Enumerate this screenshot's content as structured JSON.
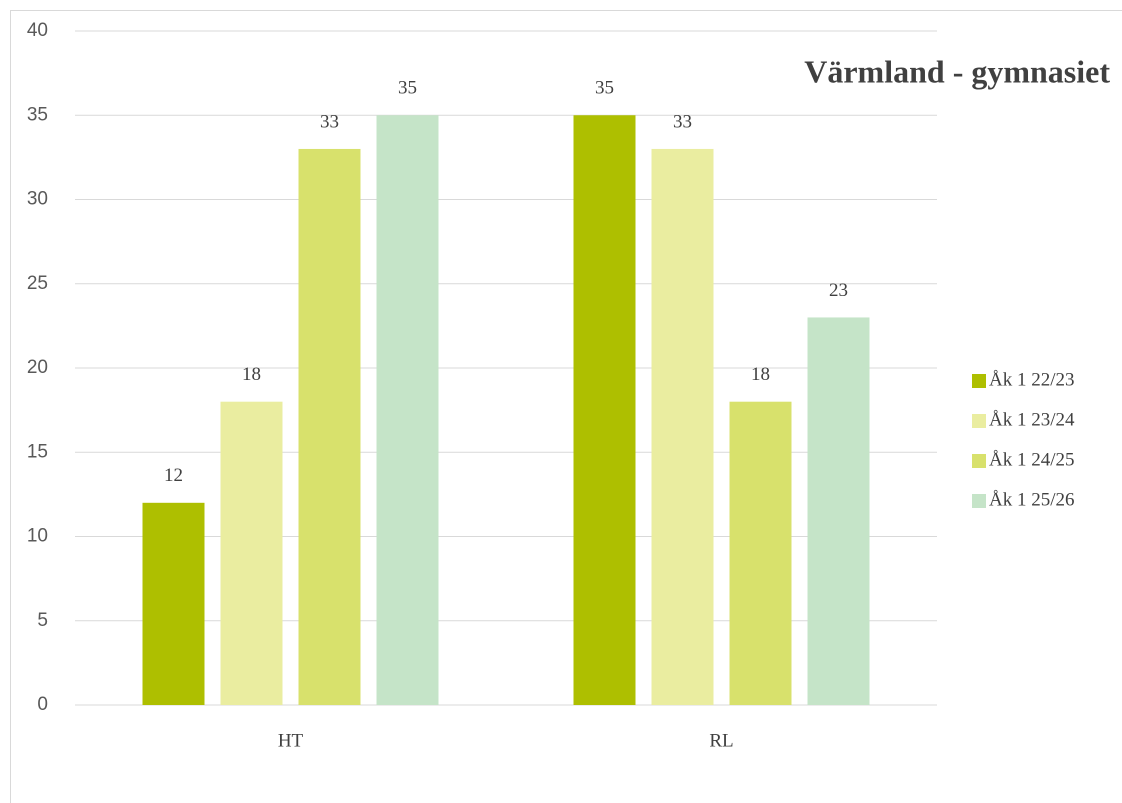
{
  "chart_data": {
    "type": "bar",
    "title": "Värmland - gymnasiet",
    "categories": [
      "HT",
      "RL"
    ],
    "series": [
      {
        "name": "Åk 1 22/23",
        "color": "#aebf00",
        "values": [
          12,
          35
        ]
      },
      {
        "name": "Åk 1 23/24",
        "color": "#eaeda0",
        "values": [
          18,
          33
        ]
      },
      {
        "name": "Åk 1 24/25",
        "color": "#d8e16c",
        "values": [
          33,
          18
        ]
      },
      {
        "name": "Åk 1 25/26",
        "color": "#c5e4c8",
        "values": [
          35,
          23
        ]
      }
    ],
    "ylim": [
      0,
      40
    ],
    "yticks": [
      0,
      5,
      10,
      15,
      20,
      25,
      30,
      35,
      40
    ],
    "grid": true,
    "legend": "right"
  }
}
